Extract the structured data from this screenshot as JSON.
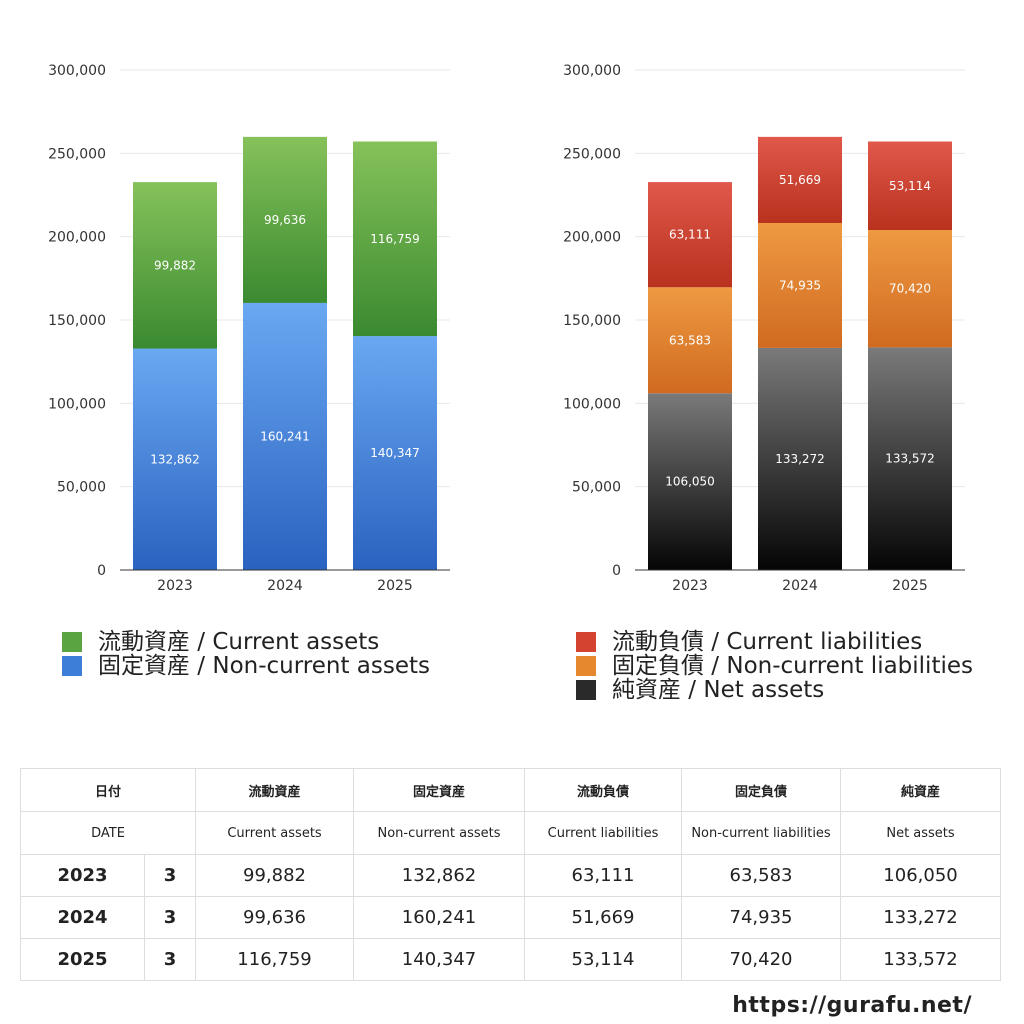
{
  "chart_data": [
    {
      "type": "bar",
      "stacked": true,
      "categories": [
        "2023",
        "2024",
        "2025"
      ],
      "ylim": [
        0,
        300000
      ],
      "yticks": [
        0,
        50000,
        100000,
        150000,
        200000,
        250000,
        300000
      ],
      "ytick_labels": [
        "0",
        "50,000",
        "100,000",
        "150,000",
        "200,000",
        "250,000",
        "300,000"
      ],
      "grid": true,
      "legend_position": "bottom",
      "series": [
        {
          "name": "固定資産 / Non-current assets",
          "values": [
            132862,
            160241,
            140347
          ],
          "labels": [
            "132,862",
            "160,241",
            "140,347"
          ],
          "color_top": "#6aa8f2",
          "color_bottom": "#2a62c0"
        },
        {
          "name": "流動資産 / Current assets",
          "values": [
            99882,
            99636,
            116759
          ],
          "labels": [
            "99,882",
            "99,636",
            "116,759"
          ],
          "color_top": "#86c25a",
          "color_bottom": "#3a8a30"
        }
      ],
      "legend": [
        {
          "name": "流動資産 / Current assets",
          "color": "#5aa542"
        },
        {
          "name": "固定資産 / Non-current assets",
          "color": "#3d7fd8"
        }
      ]
    },
    {
      "type": "bar",
      "stacked": true,
      "categories": [
        "2023",
        "2024",
        "2025"
      ],
      "ylim": [
        0,
        300000
      ],
      "yticks": [
        0,
        50000,
        100000,
        150000,
        200000,
        250000,
        300000
      ],
      "ytick_labels": [
        "0",
        "50,000",
        "100,000",
        "150,000",
        "200,000",
        "250,000",
        "300,000"
      ],
      "grid": true,
      "legend_position": "bottom",
      "series": [
        {
          "name": "純資産 / Net assets",
          "values": [
            106050,
            133272,
            133572
          ],
          "labels": [
            "106,050",
            "133,272",
            "133,572"
          ],
          "color_top": "#7a7a7a",
          "color_bottom": "#050505"
        },
        {
          "name": "固定負債 / Non-current liabilities",
          "values": [
            63583,
            74935,
            70420
          ],
          "labels": [
            "63,583",
            "74,935",
            "70,420"
          ],
          "color_top": "#ee9a42",
          "color_bottom": "#d06a20"
        },
        {
          "name": "流動負債 / Current liabilities",
          "values": [
            63111,
            51669,
            53114
          ],
          "labels": [
            "63,111",
            "51,669",
            "53,114"
          ],
          "color_top": "#e0584a",
          "color_bottom": "#b8321e"
        }
      ],
      "legend": [
        {
          "name": "流動負債 / Current liabilities",
          "color": "#d4432f"
        },
        {
          "name": "固定負債 / Non-current liabilities",
          "color": "#e6882e"
        },
        {
          "name": "純資産 / Net assets",
          "color": "#2a2a2a"
        }
      ]
    }
  ],
  "table": {
    "header_jp": [
      "日付",
      "流動資産",
      "固定資産",
      "流動負債",
      "固定負債",
      "純資産"
    ],
    "header_en": [
      "DATE",
      "Current assets",
      "Non-current assets",
      "Current liabilities",
      "Non-current liabilities",
      "Net assets"
    ],
    "rows": [
      {
        "year": "2023",
        "month": "3",
        "values": [
          "99,882",
          "132,862",
          "63,111",
          "63,583",
          "106,050"
        ]
      },
      {
        "year": "2024",
        "month": "3",
        "values": [
          "99,636",
          "160,241",
          "51,669",
          "74,935",
          "133,272"
        ]
      },
      {
        "year": "2025",
        "month": "3",
        "values": [
          "116,759",
          "140,347",
          "53,114",
          "70,420",
          "133,572"
        ]
      }
    ]
  },
  "site": "https://gurafu.net/"
}
